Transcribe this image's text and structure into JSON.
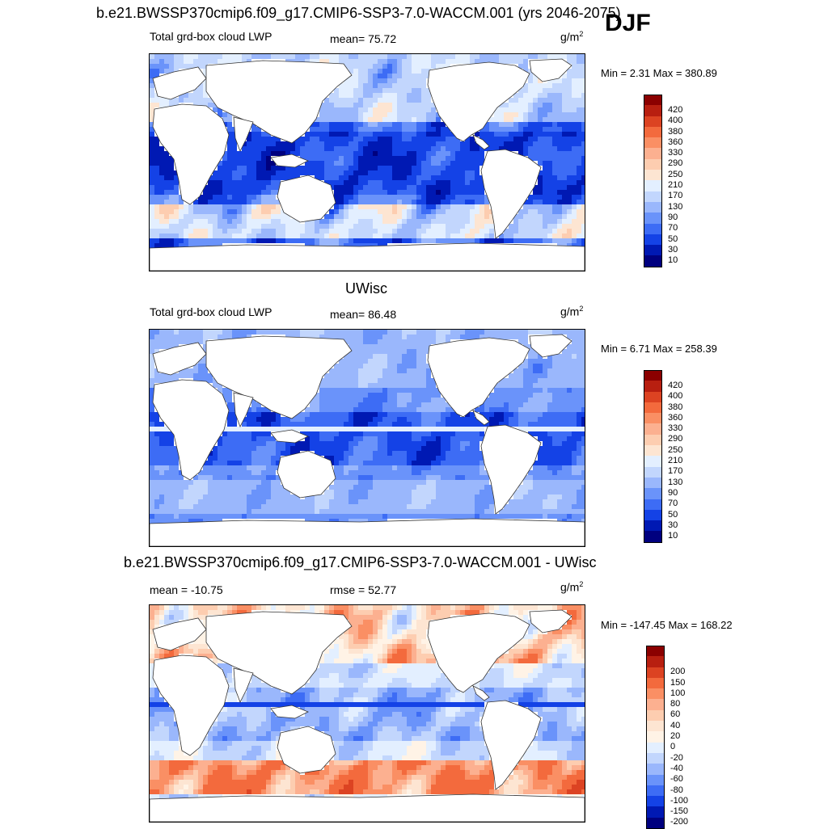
{
  "figure": {
    "main_title": "b.e21.BWSSP370cmip6.f09_g17.CMIP6-SSP3-7.0-WACCM.001 (yrs 2046-2075)",
    "season": "DJF",
    "unit": "g/m",
    "unit_exp": "2"
  },
  "colors": {
    "lwp_scale": [
      "#00007f",
      "#0019b3",
      "#1442e6",
      "#3d6cf5",
      "#6a93fa",
      "#9ab7fc",
      "#c2d6fd",
      "#e3efff",
      "#fde5d2",
      "#fdcdb0",
      "#fcb090",
      "#fa8f64",
      "#f36a3d",
      "#dc4322",
      "#b81f10",
      "#8b0000"
    ],
    "diff_scale": [
      "#00007f",
      "#0019b3",
      "#1442e6",
      "#3d6cf5",
      "#6a93fa",
      "#9ab7fc",
      "#c2d6fd",
      "#e3efff",
      "#fff3e6",
      "#fde5d2",
      "#fdcdb0",
      "#fcb090",
      "#fa8f64",
      "#f36a3d",
      "#dc4322",
      "#b81f10",
      "#8b0000"
    ],
    "land": "#ffffff",
    "coast": "#333333"
  },
  "panels": [
    {
      "title": "",
      "left_label": "Total grd-box cloud LWP",
      "center_label": "mean=  75.72",
      "minmax": "Min =   2.31 Max = 380.89"
    },
    {
      "title": "UWisc",
      "left_label": "Total grd-box cloud LWP",
      "center_label": "mean=  86.48",
      "minmax": "Min =   6.71 Max = 258.39"
    },
    {
      "title": "b.e21.BWSSP370cmip6.f09_g17.CMIP6-SSP3-7.0-WACCM.001 - UWisc",
      "left_label": "mean = -10.75",
      "center_label": "rmse =  52.77",
      "minmax": "Min = -147.45 Max = 168.22"
    }
  ],
  "chart_data": [
    {
      "type": "heatmap",
      "title": "Total grd-box cloud LWP",
      "model": "b.e21.BWSSP370cmip6.f09_g17.CMIP6-SSP3-7.0-WACCM.001 (yrs 2046-2075)",
      "season": "DJF",
      "units": "g/m^2",
      "mean": 75.72,
      "min": 2.31,
      "max": 380.89,
      "levels": [
        10,
        30,
        50,
        70,
        90,
        130,
        170,
        210,
        250,
        290,
        330,
        360,
        380,
        400,
        420
      ],
      "level_labels": [
        "10",
        "30",
        "50",
        "70",
        "90",
        "130",
        "170",
        "210",
        "250",
        "290",
        "330",
        "360",
        "380",
        "400",
        "420"
      ]
    },
    {
      "type": "heatmap",
      "title": "UWisc",
      "subtitle": "Total grd-box cloud LWP",
      "units": "g/m^2",
      "mean": 86.48,
      "min": 6.71,
      "max": 258.39,
      "levels": [
        10,
        30,
        50,
        70,
        90,
        130,
        170,
        210,
        250,
        290,
        330,
        360,
        380,
        400,
        420
      ],
      "level_labels": [
        "10",
        "30",
        "50",
        "70",
        "90",
        "130",
        "170",
        "210",
        "250",
        "290",
        "330",
        "360",
        "380",
        "400",
        "420"
      ]
    },
    {
      "type": "heatmap",
      "title": "b.e21.BWSSP370cmip6.f09_g17.CMIP6-SSP3-7.0-WACCM.001 - UWisc",
      "units": "g/m^2",
      "mean": -10.75,
      "rmse": 52.77,
      "min": -147.45,
      "max": 168.22,
      "levels": [
        -200,
        -150,
        -100,
        -80,
        -60,
        -40,
        -20,
        0,
        20,
        40,
        60,
        80,
        100,
        150,
        200
      ],
      "level_labels": [
        "-200",
        "-150",
        "-100",
        "-80",
        "-60",
        "-40",
        "-20",
        "0",
        "20",
        "40",
        "60",
        "80",
        "100",
        "150",
        "200"
      ]
    }
  ]
}
